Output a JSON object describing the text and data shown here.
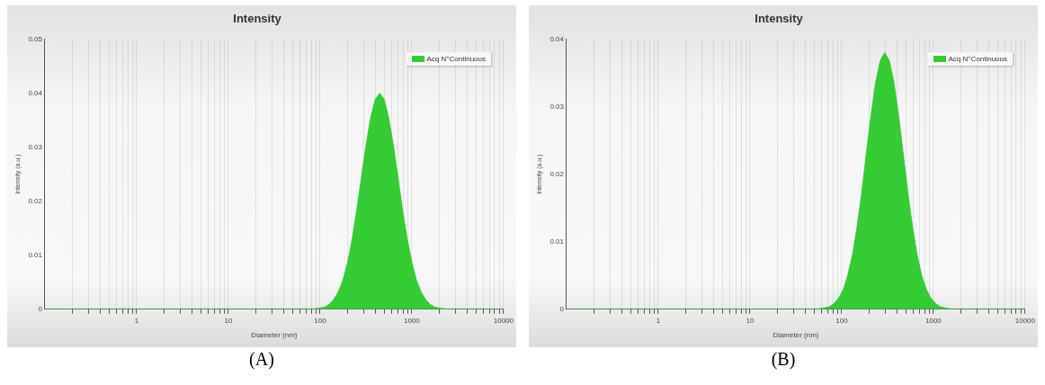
{
  "chart_data": [
    {
      "type": "area",
      "title": "Intensity",
      "xlabel": "Diameter (nm)",
      "ylabel": "Intensity (a.u.)",
      "log": "x",
      "grid": "x",
      "legend": "top right",
      "marker": "none",
      "xlim": [
        0.1,
        10000
      ],
      "ylim": [
        0,
        0.05
      ],
      "xticks": [
        {
          "value": 0.2,
          "label": null
        },
        {
          "value": 0.3,
          "label": null
        },
        {
          "value": 0.4,
          "label": null
        },
        {
          "value": 0.5,
          "label": null
        },
        {
          "value": 0.6,
          "label": null
        },
        {
          "value": 0.7,
          "label": null
        },
        {
          "value": 0.8,
          "label": null
        },
        {
          "value": 0.9,
          "label": null
        },
        1,
        {
          "value": 2,
          "label": null
        },
        {
          "value": 3,
          "label": null
        },
        {
          "value": 4,
          "label": null
        },
        {
          "value": 5,
          "label": null
        },
        {
          "value": 6,
          "label": null
        },
        {
          "value": 7,
          "label": null
        },
        {
          "value": 8,
          "label": null
        },
        {
          "value": 9,
          "label": null
        },
        10,
        {
          "value": 20,
          "label": null
        },
        {
          "value": 30,
          "label": null
        },
        {
          "value": 40,
          "label": null
        },
        {
          "value": 50,
          "label": null
        },
        {
          "value": 60,
          "label": null
        },
        {
          "value": 70,
          "label": null
        },
        {
          "value": 80,
          "label": null
        },
        {
          "value": 90,
          "label": null
        },
        100,
        {
          "value": 200,
          "label": null
        },
        {
          "value": 300,
          "label": null
        },
        {
          "value": 400,
          "label": null
        },
        {
          "value": 500,
          "label": null
        },
        {
          "value": 600,
          "label": null
        },
        {
          "value": 700,
          "label": null
        },
        {
          "value": 800,
          "label": null
        },
        {
          "value": 900,
          "label": null
        },
        1000,
        {
          "value": 2000,
          "label": null
        },
        {
          "value": 3000,
          "label": null
        },
        {
          "value": 4000,
          "label": null
        },
        {
          "value": 5000,
          "label": null
        },
        {
          "value": 6000,
          "label": null
        },
        {
          "value": 7000,
          "label": null
        },
        {
          "value": 8000,
          "label": null
        },
        {
          "value": 9000,
          "label": null
        },
        10000
      ],
      "yticks": [
        0,
        0.01,
        0.02,
        0.03,
        0.04,
        0.05
      ],
      "x": [
        0.1,
        79.4,
        89.1,
        100,
        112,
        126,
        141,
        158,
        178,
        200,
        224,
        251,
        282,
        316,
        355,
        398,
        447,
        501,
        562,
        631,
        708,
        794,
        891,
        1000,
        1122,
        1259,
        1413,
        1585,
        1778,
        1995,
        2239,
        2512,
        10000
      ],
      "series": [
        {
          "name": "Acq N°Continuous",
          "color": "#33cc33",
          "values": [
            0,
            0.0,
            0.0001,
            0.0002,
            0.0004,
            0.0009,
            0.0018,
            0.0032,
            0.0054,
            0.0087,
            0.013,
            0.0183,
            0.0243,
            0.0302,
            0.0353,
            0.0388,
            0.04,
            0.0388,
            0.0353,
            0.0302,
            0.0243,
            0.0183,
            0.013,
            0.0087,
            0.0054,
            0.0032,
            0.0018,
            0.0009,
            0.0004,
            0.0002,
            0.0001,
            0.0,
            0
          ]
        }
      ],
      "annotations": [
        "(A)"
      ]
    },
    {
      "type": "area",
      "title": "Intensity",
      "xlabel": "Diameter (nm)",
      "ylabel": "Intensity (a.u.)",
      "log": "x",
      "grid": "x",
      "legend": "top right",
      "marker": "none",
      "xlim": [
        0.1,
        10000
      ],
      "ylim": [
        0,
        0.04
      ],
      "xticks": [
        {
          "value": 0.2,
          "label": null
        },
        {
          "value": 0.3,
          "label": null
        },
        {
          "value": 0.4,
          "label": null
        },
        {
          "value": 0.5,
          "label": null
        },
        {
          "value": 0.6,
          "label": null
        },
        {
          "value": 0.7,
          "label": null
        },
        {
          "value": 0.8,
          "label": null
        },
        {
          "value": 0.9,
          "label": null
        },
        1,
        {
          "value": 2,
          "label": null
        },
        {
          "value": 3,
          "label": null
        },
        {
          "value": 4,
          "label": null
        },
        {
          "value": 5,
          "label": null
        },
        {
          "value": 6,
          "label": null
        },
        {
          "value": 7,
          "label": null
        },
        {
          "value": 8,
          "label": null
        },
        {
          "value": 9,
          "label": null
        },
        10,
        {
          "value": 20,
          "label": null
        },
        {
          "value": 30,
          "label": null
        },
        {
          "value": 40,
          "label": null
        },
        {
          "value": 50,
          "label": null
        },
        {
          "value": 60,
          "label": null
        },
        {
          "value": 70,
          "label": null
        },
        {
          "value": 80,
          "label": null
        },
        {
          "value": 90,
          "label": null
        },
        100,
        {
          "value": 200,
          "label": null
        },
        {
          "value": 300,
          "label": null
        },
        {
          "value": 400,
          "label": null
        },
        {
          "value": 500,
          "label": null
        },
        {
          "value": 600,
          "label": null
        },
        {
          "value": 700,
          "label": null
        },
        {
          "value": 800,
          "label": null
        },
        {
          "value": 900,
          "label": null
        },
        1000,
        {
          "value": 2000,
          "label": null
        },
        {
          "value": 3000,
          "label": null
        },
        {
          "value": 4000,
          "label": null
        },
        {
          "value": 5000,
          "label": null
        },
        {
          "value": 6000,
          "label": null
        },
        {
          "value": 7000,
          "label": null
        },
        {
          "value": 8000,
          "label": null
        },
        {
          "value": 9000,
          "label": null
        },
        10000
      ],
      "yticks": [
        0,
        0.01,
        0.02,
        0.03,
        0.04
      ],
      "x": [
        0.1,
        52.5,
        58.9,
        66.1,
        74.1,
        83.2,
        93.3,
        105,
        117,
        132,
        148,
        166,
        186,
        209,
        234,
        263,
        295,
        331,
        372,
        417,
        468,
        525,
        589,
        661,
        741,
        832,
        933,
        1047,
        1175,
        1318,
        1479,
        1660,
        10000
      ],
      "series": [
        {
          "name": "Acq N°Continuous",
          "color": "#33cc33",
          "values": [
            0,
            0.0,
            0.0001,
            0.0002,
            0.0004,
            0.0009,
            0.0017,
            0.003,
            0.0051,
            0.0082,
            0.0124,
            0.0174,
            0.0231,
            0.0287,
            0.0335,
            0.0368,
            0.038,
            0.0368,
            0.0335,
            0.0287,
            0.0231,
            0.0174,
            0.0124,
            0.0082,
            0.0051,
            0.003,
            0.0017,
            0.0009,
            0.0004,
            0.0002,
            0.0001,
            0.0,
            0
          ]
        }
      ],
      "annotations": [
        "(B)"
      ]
    }
  ]
}
